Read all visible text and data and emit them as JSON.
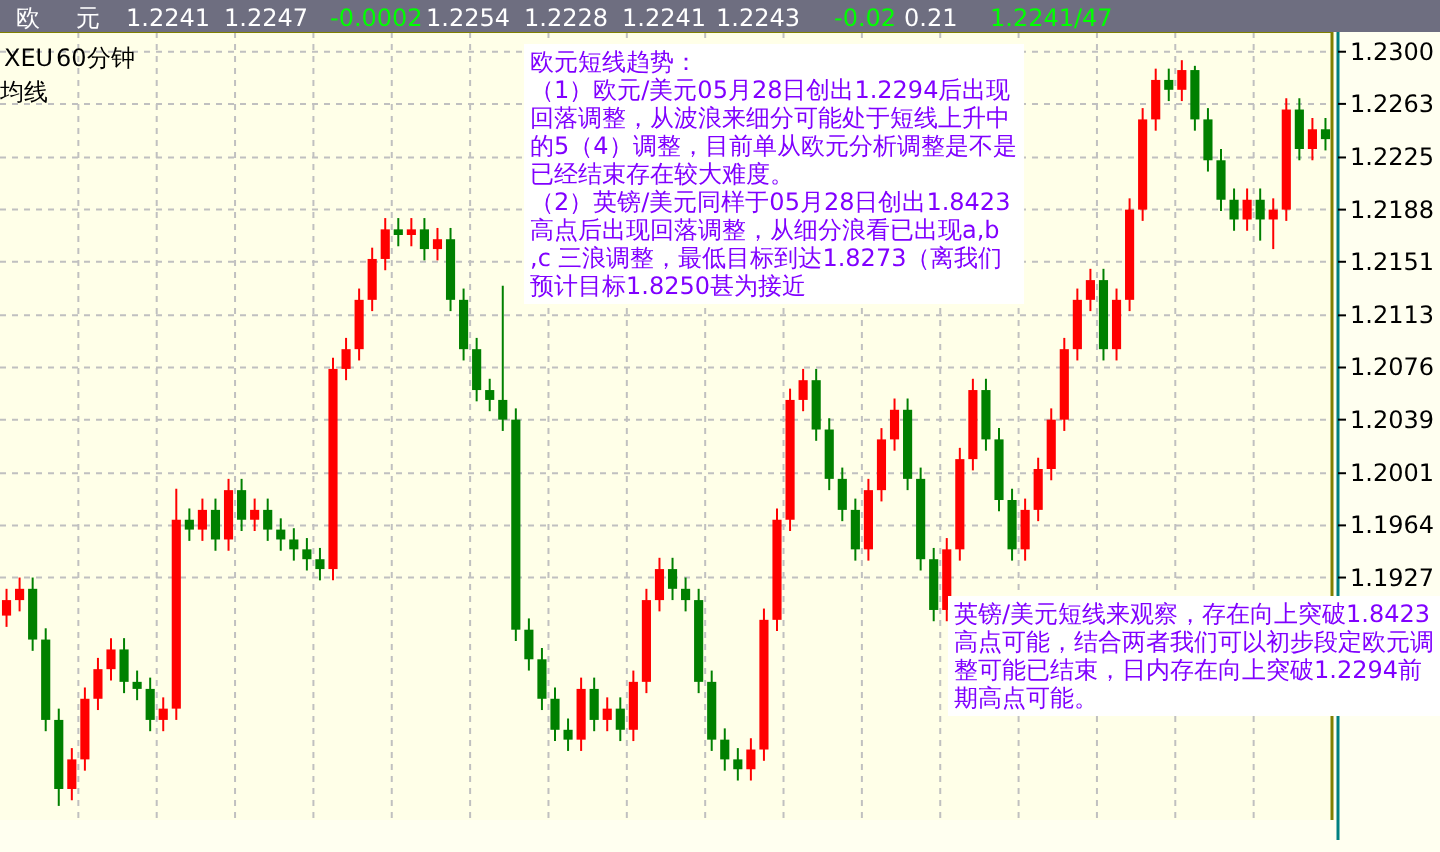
{
  "chart_data": {
    "type": "candlestick",
    "categories": [
      null,
      null,
      null,
      null,
      null,
      null,
      null,
      null,
      null,
      null,
      null,
      null,
      null,
      null,
      null,
      null,
      null,
      null,
      null,
      null,
      null,
      null,
      null,
      null,
      null,
      null,
      null,
      null,
      null,
      null,
      null,
      null,
      null,
      null,
      null,
      null,
      null,
      null,
      null,
      null,
      null,
      null,
      null,
      null,
      null,
      null,
      null,
      null,
      null,
      null,
      null,
      null,
      null,
      null,
      null,
      null,
      null,
      null,
      null,
      null,
      null,
      null,
      null,
      null,
      null,
      null,
      null,
      null,
      null,
      null,
      null,
      null,
      null,
      null,
      null,
      null,
      null,
      null,
      null,
      null,
      null,
      null,
      null,
      null,
      null,
      null,
      null,
      null,
      null,
      null,
      null,
      null,
      null,
      null,
      null,
      null,
      null,
      null,
      null,
      null,
      null,
      null
    ],
    "ohlc": [
      [
        1.19,
        1.1919,
        1.1892,
        1.1911
      ],
      [
        1.1911,
        1.1927,
        1.1903,
        1.1919
      ],
      [
        1.1919,
        1.1927,
        1.1875,
        1.1883
      ],
      [
        1.1883,
        1.1891,
        1.1818,
        1.1826
      ],
      [
        1.1826,
        1.1834,
        1.1765,
        1.1777
      ],
      [
        1.1777,
        1.1806,
        1.1769,
        1.1798
      ],
      [
        1.1798,
        1.1849,
        1.179,
        1.1841
      ],
      [
        1.1841,
        1.187,
        1.1833,
        1.1862
      ],
      [
        1.1862,
        1.1884,
        1.1854,
        1.1876
      ],
      [
        1.1876,
        1.1884,
        1.1845,
        1.1853
      ],
      [
        1.1853,
        1.1861,
        1.184,
        1.1848
      ],
      [
        1.1848,
        1.1856,
        1.1818,
        1.1826
      ],
      [
        1.1826,
        1.1842,
        1.1818,
        1.1834
      ],
      [
        1.1834,
        1.199,
        1.1826,
        1.1968
      ],
      [
        1.1968,
        1.1976,
        1.1953,
        1.1961
      ],
      [
        1.1961,
        1.1983,
        1.1953,
        1.1975
      ],
      [
        1.1975,
        1.1983,
        1.1946,
        1.1954
      ],
      [
        1.1954,
        1.1997,
        1.1946,
        1.1989
      ],
      [
        1.1989,
        1.1997,
        1.196,
        1.1968
      ],
      [
        1.1968,
        1.1983,
        1.196,
        1.1975
      ],
      [
        1.1975,
        1.1983,
        1.1953,
        1.1961
      ],
      [
        1.1961,
        1.1969,
        1.1946,
        1.1954
      ],
      [
        1.1954,
        1.1962,
        1.1939,
        1.1947
      ],
      [
        1.1947,
        1.1955,
        1.1932,
        1.194
      ],
      [
        1.194,
        1.1948,
        1.1925,
        1.1933
      ],
      [
        1.1933,
        1.2083,
        1.1925,
        1.2075
      ],
      [
        1.2075,
        1.2097,
        1.2067,
        1.2089
      ],
      [
        1.2089,
        1.2132,
        1.2081,
        1.2124
      ],
      [
        1.2124,
        1.2161,
        1.2116,
        1.2153
      ],
      [
        1.2153,
        1.2182,
        1.2145,
        1.2174
      ],
      [
        1.2174,
        1.2182,
        1.2162,
        1.217
      ],
      [
        1.217,
        1.2182,
        1.2162,
        1.2174
      ],
      [
        1.2174,
        1.2182,
        1.2152,
        1.216
      ],
      [
        1.216,
        1.2175,
        1.2152,
        1.2167
      ],
      [
        1.2167,
        1.2175,
        1.2116,
        1.2124
      ],
      [
        1.2124,
        1.2132,
        1.2081,
        1.2089
      ],
      [
        1.2089,
        1.2097,
        1.2052,
        1.206
      ],
      [
        1.206,
        1.2068,
        1.2045,
        1.2053
      ],
      [
        1.2053,
        1.2134,
        1.2031,
        1.2039
      ],
      [
        1.2039,
        1.2047,
        1.1882,
        1.189
      ],
      [
        1.189,
        1.1898,
        1.1861,
        1.1869
      ],
      [
        1.1869,
        1.1877,
        1.1833,
        1.1841
      ],
      [
        1.1841,
        1.1849,
        1.1811,
        1.1819
      ],
      [
        1.1819,
        1.1827,
        1.1804,
        1.1812
      ],
      [
        1.1812,
        1.1856,
        1.1804,
        1.1848
      ],
      [
        1.1848,
        1.1856,
        1.1818,
        1.1826
      ],
      [
        1.1826,
        1.1842,
        1.1818,
        1.1834
      ],
      [
        1.1834,
        1.1842,
        1.1811,
        1.1819
      ],
      [
        1.1819,
        1.1861,
        1.1811,
        1.1853
      ],
      [
        1.1853,
        1.1919,
        1.1845,
        1.1911
      ],
      [
        1.1911,
        1.1941,
        1.1903,
        1.1933
      ],
      [
        1.1933,
        1.1941,
        1.1911,
        1.1919
      ],
      [
        1.1919,
        1.1927,
        1.1903,
        1.1911
      ],
      [
        1.1911,
        1.1919,
        1.1845,
        1.1853
      ],
      [
        1.1853,
        1.1861,
        1.1804,
        1.1812
      ],
      [
        1.1812,
        1.182,
        1.179,
        1.1798
      ],
      [
        1.1798,
        1.1806,
        1.1783,
        1.1791
      ],
      [
        1.1791,
        1.1813,
        1.1783,
        1.1805
      ],
      [
        1.1805,
        1.1905,
        1.1797,
        1.1897
      ],
      [
        1.1897,
        1.1976,
        1.1889,
        1.1968
      ],
      [
        1.1968,
        1.2061,
        1.196,
        1.2053
      ],
      [
        1.2053,
        1.2075,
        1.2045,
        1.2067
      ],
      [
        1.2067,
        1.2075,
        1.2024,
        1.2032
      ],
      [
        1.2032,
        1.204,
        1.1989,
        1.1997
      ],
      [
        1.1997,
        1.2005,
        1.1967,
        1.1975
      ],
      [
        1.1975,
        1.1983,
        1.1939,
        1.1947
      ],
      [
        1.1947,
        1.1997,
        1.1939,
        1.1989
      ],
      [
        1.1989,
        1.2033,
        1.1981,
        1.2025
      ],
      [
        1.2025,
        1.2054,
        1.2017,
        1.2046
      ],
      [
        1.2046,
        1.2054,
        1.1989,
        1.1997
      ],
      [
        1.1997,
        1.2005,
        1.1932,
        1.194
      ],
      [
        1.194,
        1.1948,
        1.1896,
        1.1904
      ],
      [
        1.1904,
        1.1955,
        1.1896,
        1.1947
      ],
      [
        1.1947,
        1.2019,
        1.1939,
        1.2011
      ],
      [
        1.2011,
        1.2068,
        1.2003,
        1.206
      ],
      [
        1.206,
        1.2068,
        1.2017,
        1.2025
      ],
      [
        1.2025,
        1.2033,
        1.1974,
        1.1982
      ],
      [
        1.1982,
        1.199,
        1.1939,
        1.1947
      ],
      [
        1.1947,
        1.1983,
        1.1939,
        1.1975
      ],
      [
        1.1975,
        1.2012,
        1.1967,
        1.2004
      ],
      [
        1.2004,
        1.2047,
        1.1996,
        1.2039
      ],
      [
        1.2039,
        1.2097,
        1.2031,
        1.2089
      ],
      [
        1.2089,
        1.2132,
        1.2081,
        1.2124
      ],
      [
        1.2124,
        1.2146,
        1.2116,
        1.2138
      ],
      [
        1.2138,
        1.2146,
        1.2081,
        1.2089
      ],
      [
        1.2089,
        1.2132,
        1.2081,
        1.2124
      ],
      [
        1.2124,
        1.2196,
        1.2116,
        1.2188
      ],
      [
        1.2188,
        1.226,
        1.218,
        1.2252
      ],
      [
        1.2252,
        1.2288,
        1.2244,
        1.228
      ],
      [
        1.228,
        1.2288,
        1.2265,
        1.2273
      ],
      [
        1.2273,
        1.2294,
        1.2265,
        1.2287
      ],
      [
        1.2287,
        1.229,
        1.2244,
        1.2252
      ],
      [
        1.2252,
        1.226,
        1.2215,
        1.2223
      ],
      [
        1.2223,
        1.2231,
        1.2187,
        1.2195
      ],
      [
        1.2195,
        1.2203,
        1.2173,
        1.2181
      ],
      [
        1.2181,
        1.2203,
        1.2173,
        1.2195
      ],
      [
        1.2195,
        1.2203,
        1.2166,
        1.2181
      ],
      [
        1.2181,
        1.2196,
        1.216,
        1.2188
      ],
      [
        1.2188,
        1.2267,
        1.218,
        1.2259
      ],
      [
        1.2259,
        1.2267,
        1.2223,
        1.2231
      ],
      [
        1.2231,
        1.2253,
        1.2223,
        1.2245
      ],
      [
        1.2245,
        1.2253,
        1.223,
        1.2238
      ]
    ],
    "ylim": [
      1.1755,
      1.2314
    ],
    "yticks": [
      {
        "value": 1.23,
        "label": "1.2300"
      },
      {
        "value": 1.2263,
        "label": "1.2263"
      },
      {
        "value": 1.2225,
        "label": "1.2225"
      },
      {
        "value": 1.2188,
        "label": "1.2188"
      },
      {
        "value": 1.2151,
        "label": "1.2151"
      },
      {
        "value": 1.2113,
        "label": "1.2113"
      },
      {
        "value": 1.2076,
        "label": "1.2076"
      },
      {
        "value": 1.2039,
        "label": "1.2039"
      },
      {
        "value": 1.2001,
        "label": "1.2001"
      },
      {
        "value": 1.1964,
        "label": "1.1964"
      },
      {
        "value": 1.1927,
        "label": "1.1927"
      }
    ],
    "tick_labels": "y",
    "grid": true,
    "annotations": [
      "欧",
      "元",
      "1.2241",
      "1.2247",
      "-0.0002",
      "1.2254",
      "1.2228",
      "1.2241",
      "1.2243",
      "-0.02",
      "0.21",
      "1.2241/47",
      "XEU",
      "60分钟",
      "均线",
      "欧元短线趋势：",
      "（1）欧元/美元05月28日创出1.2294后出现回落调整，从波浪来细分可能处于短线上升中的5（4）调整，目前单从欧元分析调整是不是已经结束存在较大难度。",
      "（2）英镑/美元同样于05月28日创出1.8423高点后出现回落调整，从细分浪看已出现a,b ,c 三浪调整，最低目标到达1.8273（离我们预计目标1.8250甚为接近",
      "英镑/美元短线来观察，存在向上突破1.8423高点可能，结合两者我们可以初步段定欧元调整可能已结束，日内存在向上突破1.2294前期高点可能。"
    ]
  }
}
